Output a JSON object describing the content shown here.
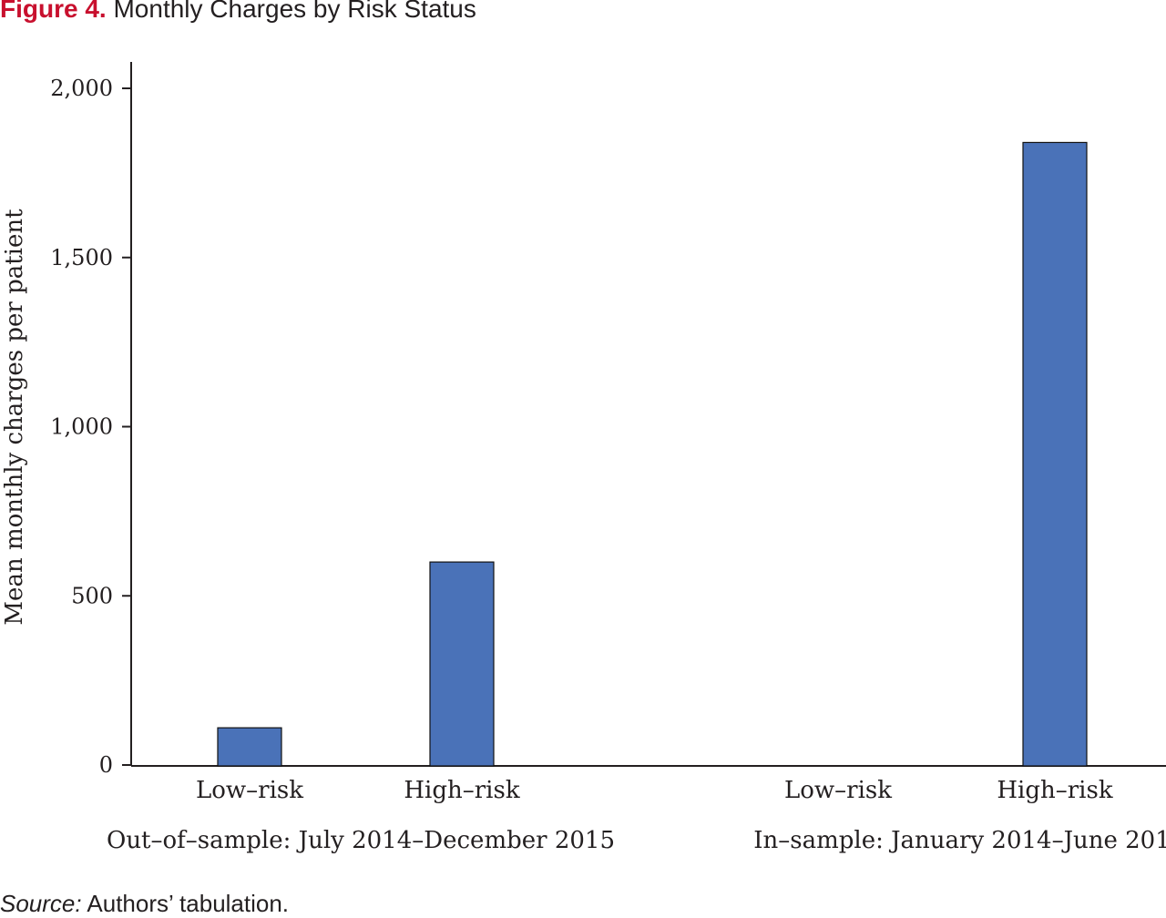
{
  "figure": {
    "label": "Figure 4.",
    "title": "Monthly Charges by Risk Status"
  },
  "source": {
    "label": "Source:",
    "text": "Authors’ tabulation."
  },
  "colors": {
    "bar": "#4a72b8",
    "bar_stroke": "#111111",
    "axis": "#231f20",
    "figure_label": "#c8102e"
  },
  "chart_data": {
    "type": "bar",
    "ylabel": "Mean monthly charges per patient",
    "ylim": [
      0,
      2000
    ],
    "yticks": [
      0,
      500,
      1000,
      1500,
      2000
    ],
    "ytick_labels": [
      "0",
      "500",
      "1,000",
      "1,500",
      "2,000"
    ],
    "grid": false,
    "groups": [
      {
        "label": "Out–of–sample: July 2014–December 2015",
        "categories": [
          "Low–risk",
          "High–risk"
        ],
        "values": [
          110,
          600
        ]
      },
      {
        "label": "In–sample: January 2014–June 201",
        "categories": [
          "Low–risk",
          "High–risk"
        ],
        "values": [
          0,
          1840
        ]
      }
    ]
  }
}
